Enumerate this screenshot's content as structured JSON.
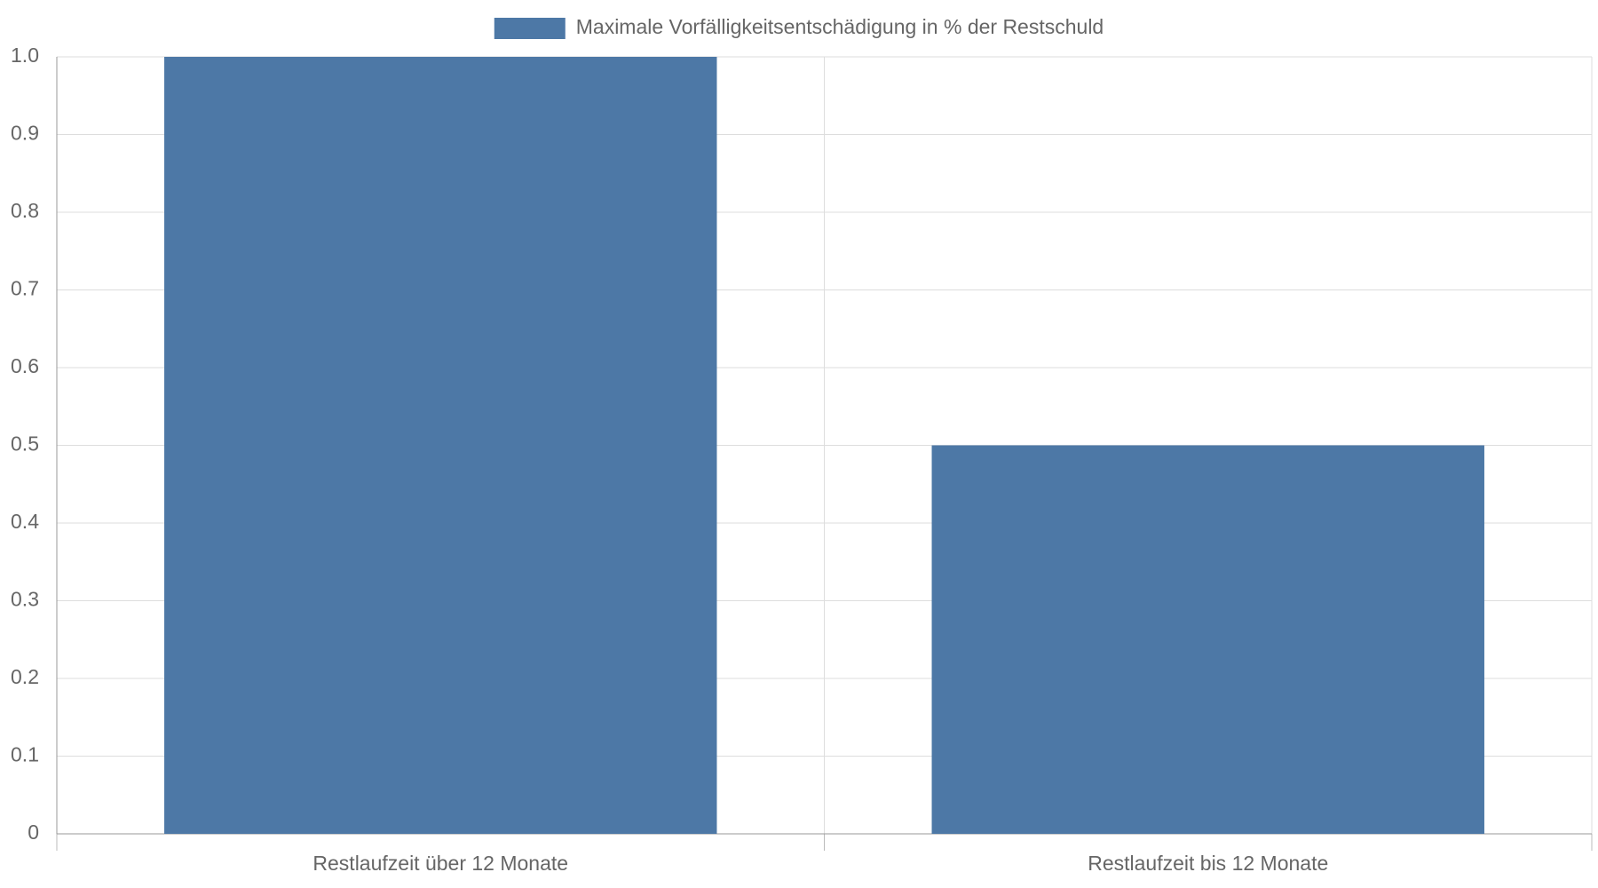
{
  "chart_data": {
    "type": "bar",
    "categories": [
      "Restlaufzeit über 12 Monate",
      "Restlaufzeit bis 12 Monate"
    ],
    "series": [
      {
        "name": "Maximale Vorfälligkeitsentschädigung in % der Restschuld",
        "color": "#4d78a6",
        "values": [
          1,
          0.5
        ]
      }
    ],
    "ylim": [
      0,
      1
    ],
    "yticks": [
      0,
      0.1,
      0.2,
      0.3,
      0.4,
      0.5,
      0.6,
      0.7,
      0.8,
      0.9,
      {
        "value": 1,
        "label": "1.0"
      }
    ],
    "grid": true,
    "legend": "top"
  }
}
